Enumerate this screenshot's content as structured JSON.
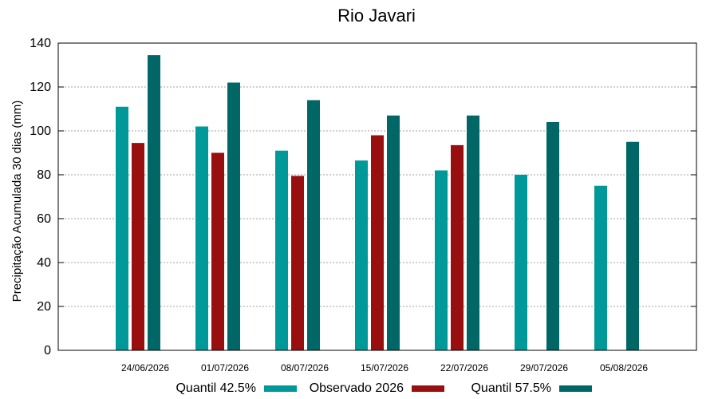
{
  "chart_data": {
    "type": "bar",
    "title": "Rio Javari",
    "xlabel": "",
    "ylabel": "Precipitação Acumulada 30 dias (mm)",
    "ylim": [
      0,
      140
    ],
    "yticks": [
      0,
      20,
      40,
      60,
      80,
      100,
      120,
      140
    ],
    "grid": true,
    "legend_position": "bottom",
    "categories": [
      "24/06/2026",
      "01/07/2026",
      "08/07/2026",
      "15/07/2026",
      "22/07/2026",
      "29/07/2026",
      "05/08/2026"
    ],
    "series": [
      {
        "name": "Quantil 42.5%",
        "color": "#009999",
        "values": [
          111,
          102,
          91,
          86.5,
          82,
          80,
          75
        ]
      },
      {
        "name": "Observado 2026",
        "color": "#990f0f",
        "values": [
          94.5,
          90,
          79.5,
          98,
          93.5,
          null,
          null
        ]
      },
      {
        "name": "Quantil 57.5%",
        "color": "#006666",
        "values": [
          134.5,
          122,
          114,
          107,
          107,
          104,
          95
        ]
      }
    ]
  }
}
